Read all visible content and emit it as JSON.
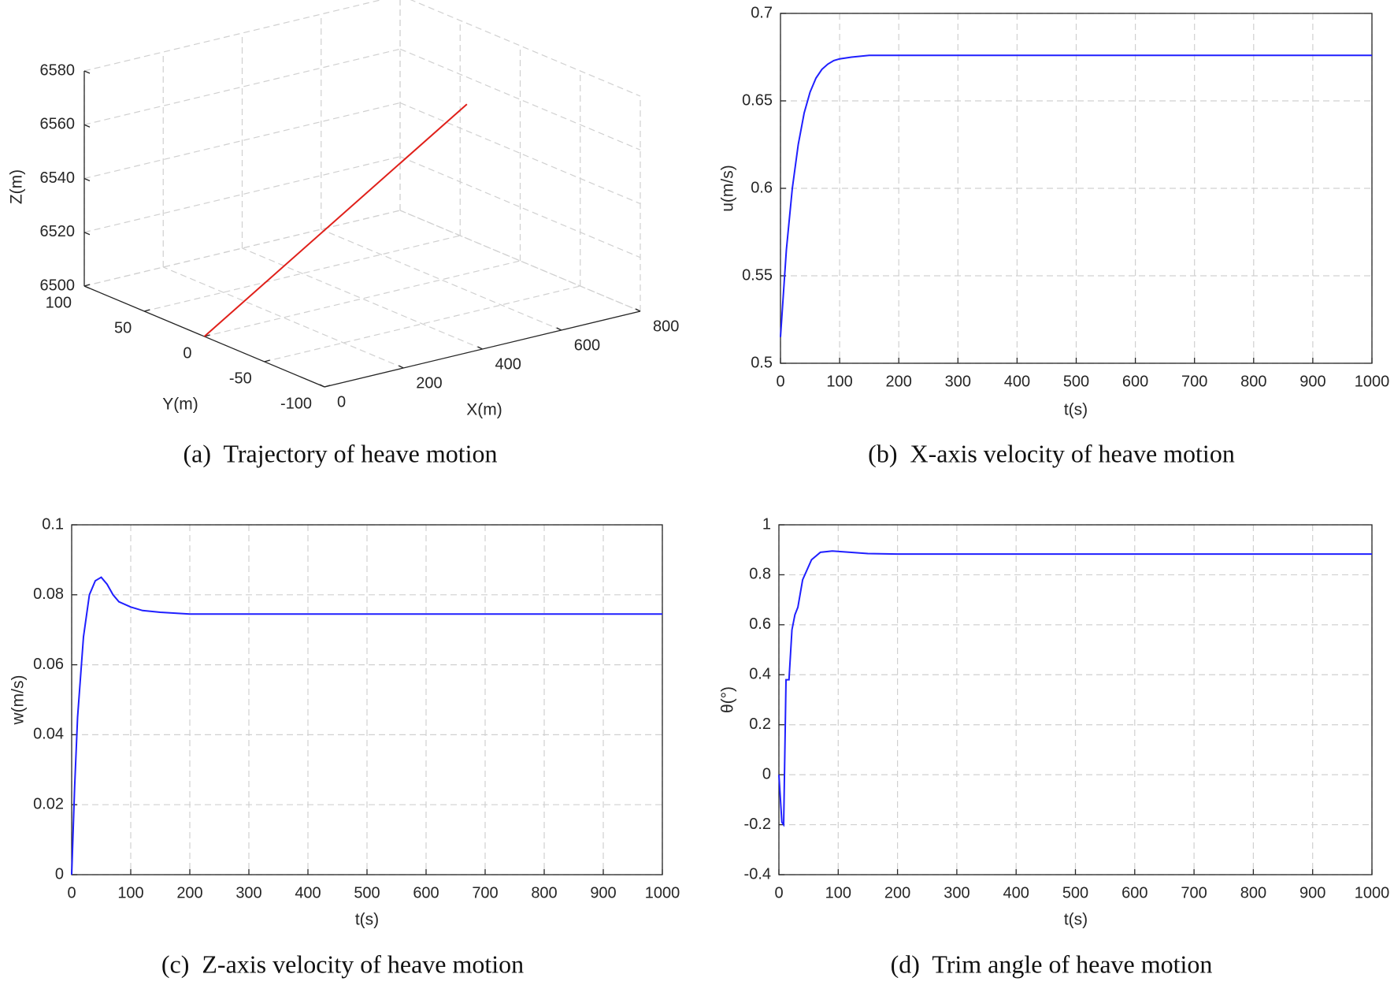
{
  "chart_data": [
    {
      "type": "line3d",
      "caption": "(a)  Trajectory of heave motion",
      "xlabel": "X(m)",
      "ylabel": "Y(m)",
      "zlabel": "Z(m)",
      "x": [
        0,
        665
      ],
      "y": [
        0,
        0
      ],
      "z": [
        6500,
        6563
      ],
      "color": "#e0201a",
      "xlim": [
        0,
        800
      ],
      "xticks": [
        0,
        200,
        400,
        600,
        800
      ],
      "ylim": [
        -100,
        100
      ],
      "yticks": [
        -100,
        -50,
        0,
        50,
        100
      ],
      "zlim": [
        6500,
        6580
      ],
      "zticks": [
        6500,
        6520,
        6540,
        6560,
        6580
      ],
      "grid": true
    },
    {
      "type": "line",
      "caption": "(b)  X-axis velocity of heave motion",
      "xlabel": "t(s)",
      "ylabel": "u(m/s)",
      "x": [
        0,
        5,
        10,
        20,
        30,
        40,
        50,
        60,
        70,
        80,
        90,
        100,
        120,
        150,
        200,
        1000
      ],
      "values": [
        0.515,
        0.54,
        0.565,
        0.6,
        0.625,
        0.643,
        0.655,
        0.663,
        0.668,
        0.671,
        0.673,
        0.674,
        0.675,
        0.676,
        0.676,
        0.676
      ],
      "color": "#1f1fff",
      "xlim": [
        0,
        1000
      ],
      "xticks": [
        0,
        100,
        200,
        300,
        400,
        500,
        600,
        700,
        800,
        900,
        1000
      ],
      "ylim": [
        0.5,
        0.7
      ],
      "yticks": [
        0.5,
        0.55,
        0.6,
        0.65,
        0.7
      ],
      "grid": true
    },
    {
      "type": "line",
      "caption": "(c)  Z-axis velocity of heave motion",
      "xlabel": "t(s)",
      "ylabel": "w(m/s)",
      "x": [
        0,
        5,
        10,
        20,
        30,
        40,
        50,
        60,
        70,
        80,
        100,
        120,
        150,
        200,
        1000
      ],
      "values": [
        0,
        0.025,
        0.045,
        0.068,
        0.08,
        0.084,
        0.085,
        0.083,
        0.08,
        0.078,
        0.0765,
        0.0755,
        0.075,
        0.0745,
        0.0745
      ],
      "color": "#1f1fff",
      "xlim": [
        0,
        1000
      ],
      "xticks": [
        0,
        100,
        200,
        300,
        400,
        500,
        600,
        700,
        800,
        900,
        1000
      ],
      "ylim": [
        0,
        0.1
      ],
      "yticks": [
        0,
        0.02,
        0.04,
        0.06,
        0.08,
        0.1
      ],
      "grid": true
    },
    {
      "type": "line",
      "caption": "(d)  Trim angle of heave motion",
      "xlabel": "t(s)",
      "ylabel": "θ(°)",
      "x": [
        0,
        5,
        8,
        12,
        17,
        22,
        27,
        32,
        40,
        55,
        70,
        90,
        120,
        150,
        200,
        1000
      ],
      "values": [
        0,
        -0.19,
        -0.2,
        0.38,
        0.38,
        0.58,
        0.64,
        0.67,
        0.78,
        0.86,
        0.89,
        0.895,
        0.89,
        0.885,
        0.883,
        0.883
      ],
      "color": "#1f1fff",
      "xlim": [
        0,
        1000
      ],
      "xticks": [
        0,
        100,
        200,
        300,
        400,
        500,
        600,
        700,
        800,
        900,
        1000
      ],
      "ylim": [
        -0.4,
        1
      ],
      "yticks": [
        -0.4,
        -0.2,
        0,
        0.2,
        0.4,
        0.6,
        0.8,
        1
      ],
      "grid": true
    }
  ]
}
